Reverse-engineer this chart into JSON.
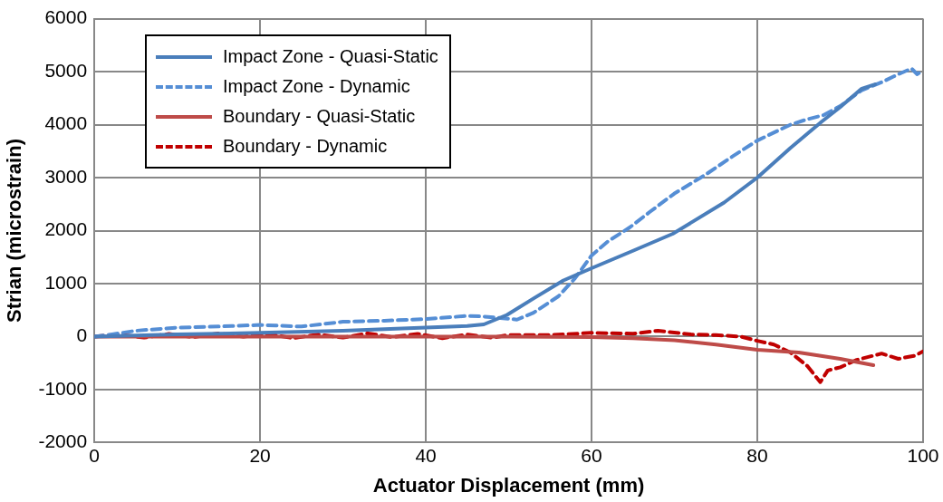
{
  "chart_data": {
    "type": "line",
    "xlabel": "Actuator Displacement (mm)",
    "ylabel": "Strian (microstrain)",
    "xlim": [
      0,
      100
    ],
    "xticks": [
      0,
      20,
      40,
      60,
      80,
      100
    ],
    "ylim": [
      -2000,
      6000
    ],
    "yticks": [
      -2000,
      -1000,
      0,
      1000,
      2000,
      3000,
      4000,
      5000,
      6000
    ],
    "grid": true,
    "legend": "top left",
    "marker": "none",
    "series": [
      {
        "name": "Impact Zone - Quasi-Static",
        "color": "#4a7ebb",
        "line_style": "solid",
        "x": [
          0,
          10,
          20,
          30,
          40,
          45,
          47,
          49.8,
          53,
          56.6,
          60,
          65,
          69.8,
          76,
          80,
          84,
          87.8,
          90,
          92.6,
          94.2
        ],
        "values": [
          0,
          40,
          70,
          110,
          170,
          200,
          230,
          410,
          720,
          1060,
          1290,
          1620,
          1940,
          2530,
          3000,
          3560,
          4060,
          4330,
          4680,
          4760
        ]
      },
      {
        "name": "Impact Zone - Dynamic",
        "color": "#558ed5",
        "line_style": "dashed",
        "x": [
          0,
          2,
          5,
          10,
          15,
          20,
          25,
          30,
          35,
          40,
          45,
          46.8,
          49,
          51,
          53,
          56,
          58,
          60,
          62,
          64.6,
          67,
          70,
          73.8,
          77,
          80,
          84,
          86,
          88,
          90,
          92.6,
          95,
          97,
          98.6,
          99.3,
          100
        ],
        "values": [
          0,
          40,
          110,
          170,
          190,
          220,
          190,
          280,
          300,
          330,
          390,
          380,
          350,
          320,
          450,
          760,
          1100,
          1530,
          1800,
          2060,
          2350,
          2700,
          3060,
          3400,
          3700,
          4000,
          4100,
          4180,
          4350,
          4650,
          4800,
          4950,
          5060,
          4950,
          5030
        ]
      },
      {
        "name": "Boundary - Quasi-Static",
        "color": "#be4b48",
        "line_style": "solid",
        "x": [
          0,
          10,
          20,
          30,
          40,
          50,
          60,
          65,
          70,
          75,
          80,
          85,
          90,
          94
        ],
        "values": [
          0,
          0,
          0,
          0,
          0,
          0,
          -10,
          -30,
          -70,
          -150,
          -250,
          -300,
          -420,
          -540
        ]
      },
      {
        "name": "Boundary - Dynamic",
        "color": "#c00000",
        "line_style": "dashed",
        "x": [
          0,
          3,
          6,
          9,
          12,
          15,
          18,
          21,
          24,
          27,
          30,
          33,
          36,
          39,
          42,
          45,
          48,
          50,
          55,
          60,
          65,
          68,
          72,
          75,
          78,
          80,
          82,
          84,
          86,
          87.6,
          88.5,
          90,
          92,
          95,
          97,
          99,
          100
        ],
        "values": [
          0,
          40,
          -20,
          50,
          -10,
          60,
          0,
          50,
          -30,
          40,
          -20,
          60,
          -10,
          50,
          -30,
          40,
          -20,
          30,
          30,
          70,
          55,
          110,
          40,
          30,
          0,
          -80,
          -150,
          -300,
          -550,
          -860,
          -640,
          -580,
          -440,
          -320,
          -420,
          -360,
          -280
        ]
      }
    ]
  }
}
